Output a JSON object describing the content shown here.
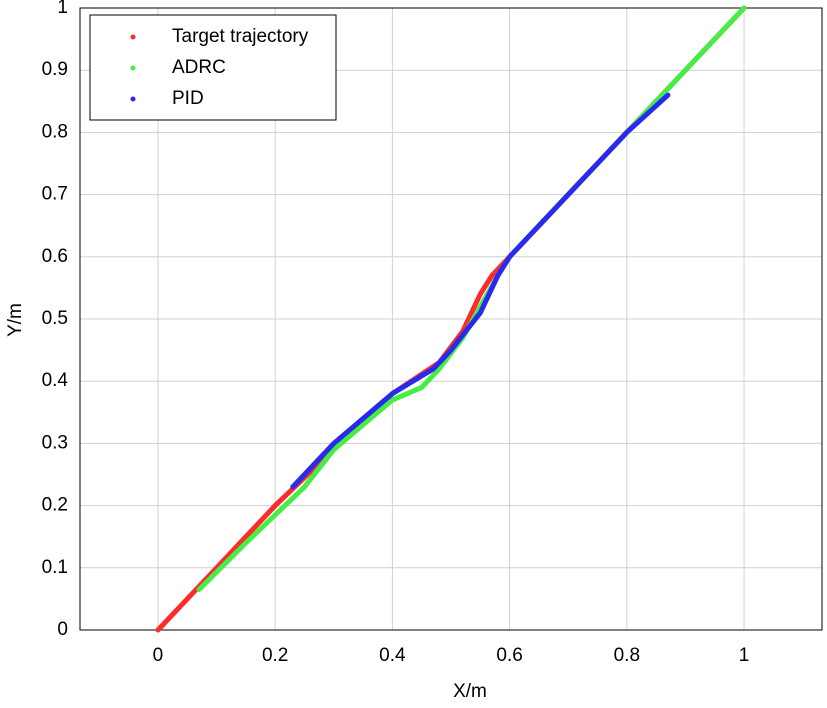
{
  "chart_data": {
    "type": "line",
    "xlabel": "X/m",
    "ylabel": "Y/m",
    "xlim": [
      -0.133,
      1.133
    ],
    "ylim": [
      0,
      1
    ],
    "xticks": [
      0,
      0.2,
      0.4,
      0.6,
      0.8,
      1
    ],
    "yticks": [
      0,
      0.1,
      0.2,
      0.3,
      0.4,
      0.5,
      0.6,
      0.7,
      0.8,
      0.9,
      1
    ],
    "grid": true,
    "legend": "upper left",
    "series": [
      {
        "name": "Target trajectory",
        "color": "#ff2a2a",
        "x": [
          0,
          0.1,
          0.2,
          0.3,
          0.4,
          0.48,
          0.52,
          0.55,
          0.57,
          0.6,
          0.7,
          0.8,
          0.9,
          1
        ],
        "values": [
          0,
          0.1,
          0.2,
          0.29,
          0.38,
          0.43,
          0.48,
          0.54,
          0.57,
          0.6,
          0.7,
          0.8,
          0.9,
          1
        ]
      },
      {
        "name": "ADRC",
        "color": "#44ee44",
        "x": [
          0.07,
          0.15,
          0.25,
          0.3,
          0.4,
          0.45,
          0.48,
          0.52,
          0.55,
          0.58,
          0.6,
          0.7,
          0.8,
          0.9,
          1
        ],
        "values": [
          0.065,
          0.14,
          0.23,
          0.29,
          0.37,
          0.39,
          0.42,
          0.47,
          0.52,
          0.57,
          0.6,
          0.7,
          0.8,
          0.9,
          1
        ]
      },
      {
        "name": "PID",
        "color": "#2a2aee",
        "x": [
          0.23,
          0.3,
          0.4,
          0.47,
          0.5,
          0.55,
          0.58,
          0.6,
          0.7,
          0.8,
          0.87
        ],
        "values": [
          0.23,
          0.3,
          0.38,
          0.42,
          0.45,
          0.51,
          0.57,
          0.6,
          0.7,
          0.8,
          0.86
        ]
      }
    ]
  }
}
